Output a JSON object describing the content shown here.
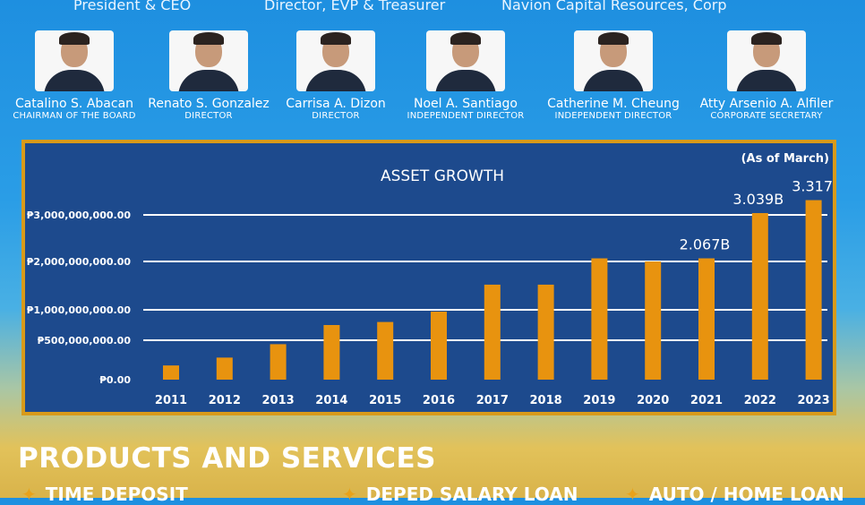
{
  "top_titles": [
    "President & CEO",
    "Director, EVP & Treasurer",
    "Navion Capital Resources, Corp"
  ],
  "board": [
    {
      "name": "Catalino S. Abacan",
      "role": "CHAIRMAN OF THE BOARD"
    },
    {
      "name": "Renato S. Gonzalez",
      "role": "DIRECTOR"
    },
    {
      "name": "Carrisa A. Dizon",
      "role": "DIRECTOR"
    },
    {
      "name": "Noel A. Santiago",
      "role": "INDEPENDENT DIRECTOR"
    },
    {
      "name": "Catherine M. Cheung",
      "role": "INDEPENDENT DIRECTOR"
    },
    {
      "name": "Atty Arsenio A. Alfiler",
      "role": "CORPORATE SECRETARY"
    }
  ],
  "chart_data": {
    "type": "bar",
    "title": "ASSET GROWTH",
    "note": "(As of March)",
    "categories": [
      "2011",
      "2012",
      "2013",
      "2014",
      "2015",
      "2016",
      "2017",
      "2018",
      "2019",
      "2020",
      "2021",
      "2022",
      "2023"
    ],
    "values": [
      180000000,
      280000000,
      450000000,
      750000000,
      800000000,
      970000000,
      1520000000,
      1520000000,
      2067000000,
      2000000000,
      2067000000,
      3039000000,
      3317000000
    ],
    "data_labels": [
      "",
      "",
      "",
      "",
      "",
      "",
      "",
      "",
      "",
      "",
      "2.067B",
      "3.039B",
      "3.317B"
    ],
    "y_ticks": [
      {
        "value": 0,
        "label": "₱0.00"
      },
      {
        "value": 500000000,
        "label": "₱500,000,000.00"
      },
      {
        "value": 1000000000,
        "label": "₱1,000,000,000.00"
      },
      {
        "value": 2000000000,
        "label": "₱2,000,000,000.00"
      },
      {
        "value": 3000000000,
        "label": "₱3,000,000,000.00"
      }
    ],
    "bar_color": "#e8930f",
    "grid": true
  },
  "products": {
    "title": "PRODUCTS AND SERVICES",
    "items": [
      "TIME DEPOSIT",
      "DEPED SALARY LOAN",
      "AUTO / HOME LOAN"
    ]
  }
}
